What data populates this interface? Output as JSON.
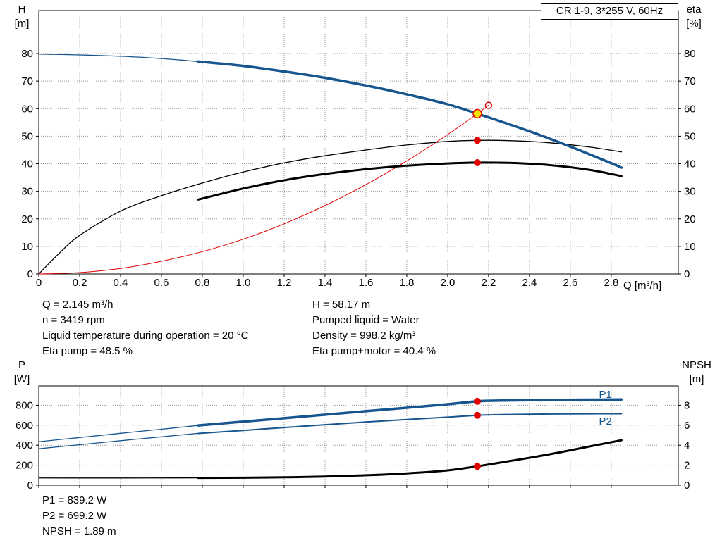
{
  "colors": {
    "blue": "#17558f",
    "red": "#e00000",
    "black": "#000000",
    "yellow": "#ffe600",
    "grid": "#999999"
  },
  "axis_titles": {
    "top_left": [
      "H",
      "[m]"
    ],
    "top_right": [
      "eta",
      "[%]"
    ],
    "bottom_left": [
      "P",
      "[W]"
    ],
    "bottom_right": [
      "NPSH",
      "[m]"
    ]
  },
  "info": {
    "left": [
      "Q = 2.145 m³/h",
      "n = 3419 rpm",
      "Liquid temperature during operation = 20 °C",
      "Eta pump = 48.5 %"
    ],
    "right": [
      "H = 58.17 m",
      "Pumped liquid = Water",
      "Density = 998.2 kg/m³",
      "Eta pump+motor = 40.4 %"
    ]
  },
  "info_bottom": [
    "P1 = 839.2 W",
    "P2 = 699.2 W",
    "NPSH = 1.89 m"
  ],
  "chart_data": [
    {
      "type": "line",
      "title": "CR 1-9, 3*255 V, 60Hz",
      "xlabel": "Q [m³/h]",
      "ylabel_left": "H [m]",
      "ylabel_right": "eta [%]",
      "xlim": [
        0,
        3.128
      ],
      "ylim_left": [
        0,
        95.6
      ],
      "ylim_right": [
        0,
        95.6
      ],
      "grid": true,
      "x_ticks": [
        [
          0,
          "0"
        ],
        [
          0.2,
          "0.2"
        ],
        [
          0.4,
          "0.4"
        ],
        [
          0.6,
          "0.6"
        ],
        [
          0.8,
          "0.8"
        ],
        [
          1.0,
          "1.0"
        ],
        [
          1.2,
          "1.2"
        ],
        [
          1.4,
          "1.4"
        ],
        [
          1.6,
          "1.6"
        ],
        [
          1.8,
          "1.8"
        ],
        [
          2.0,
          "2.0"
        ],
        [
          2.2,
          "2.2"
        ],
        [
          2.4,
          "2.4"
        ],
        [
          2.6,
          "2.6"
        ],
        [
          2.8,
          "2.8"
        ]
      ],
      "y_ticks_left": [
        [
          0,
          "0"
        ],
        [
          10,
          "10"
        ],
        [
          20,
          "20"
        ],
        [
          30,
          "30"
        ],
        [
          40,
          "40"
        ],
        [
          50,
          "50"
        ],
        [
          60,
          "60"
        ],
        [
          70,
          "70"
        ],
        [
          80,
          "80"
        ]
      ],
      "y_ticks_right": [
        [
          0,
          "0"
        ],
        [
          10,
          "10"
        ],
        [
          20,
          "20"
        ],
        [
          30,
          "30"
        ],
        [
          40,
          "40"
        ],
        [
          50,
          "50"
        ],
        [
          60,
          "60"
        ],
        [
          70,
          "70"
        ],
        [
          80,
          "80"
        ]
      ],
      "series": [
        {
          "name": "system-curve",
          "color": "red",
          "width": 1,
          "axis": "left",
          "points": [
            [
              0,
              0
            ],
            [
              0.2,
              0.5
            ],
            [
              0.4,
              2.0
            ],
            [
              0.6,
              4.6
            ],
            [
              0.8,
              8.1
            ],
            [
              1.0,
              12.6
            ],
            [
              1.2,
              18.2
            ],
            [
              1.4,
              24.8
            ],
            [
              1.6,
              32.4
            ],
            [
              1.8,
              41.0
            ],
            [
              2.0,
              50.6
            ],
            [
              2.145,
              58.17
            ],
            [
              2.2,
              61.2
            ]
          ]
        },
        {
          "name": "eta-pump-curve",
          "color": "black",
          "width": 1.3,
          "axis": "right",
          "points": [
            [
              0,
              0
            ],
            [
              0.1,
              7.5
            ],
            [
              0.2,
              14
            ],
            [
              0.4,
              22.8
            ],
            [
              0.6,
              28.4
            ],
            [
              0.8,
              33
            ],
            [
              1.0,
              37
            ],
            [
              1.2,
              40.3
            ],
            [
              1.4,
              42.9
            ],
            [
              1.6,
              45
            ],
            [
              1.8,
              46.8
            ],
            [
              2.0,
              48.1
            ],
            [
              2.145,
              48.5
            ],
            [
              2.3,
              48.4
            ],
            [
              2.5,
              47.6
            ],
            [
              2.7,
              46
            ],
            [
              2.85,
              44.3
            ]
          ]
        },
        {
          "name": "eta-pump-motor-curve",
          "color": "black",
          "width": 3,
          "axis": "right",
          "points": [
            [
              0.78,
              27
            ],
            [
              1.0,
              31
            ],
            [
              1.2,
              34
            ],
            [
              1.4,
              36.3
            ],
            [
              1.6,
              38
            ],
            [
              1.8,
              39.3
            ],
            [
              2.0,
              40.1
            ],
            [
              2.145,
              40.4
            ],
            [
              2.3,
              40.3
            ],
            [
              2.5,
              39.5
            ],
            [
              2.7,
              37.7
            ],
            [
              2.85,
              35.5
            ]
          ]
        },
        {
          "name": "h-curve-thin",
          "color": "blue",
          "width": 1.3,
          "axis": "left",
          "points": [
            [
              0,
              79.8
            ],
            [
              0.2,
              79.5
            ],
            [
              0.4,
              79.0
            ],
            [
              0.6,
              78.2
            ],
            [
              0.78,
              77.1
            ]
          ]
        },
        {
          "name": "h-curve",
          "color": "blue",
          "width": 3.5,
          "axis": "left",
          "points": [
            [
              0.78,
              77.1
            ],
            [
              1.0,
              75.5
            ],
            [
              1.2,
              73.5
            ],
            [
              1.4,
              71.2
            ],
            [
              1.6,
              68.4
            ],
            [
              1.8,
              65.2
            ],
            [
              2.0,
              61.6
            ],
            [
              2.145,
              58.17
            ],
            [
              2.4,
              51.8
            ],
            [
              2.6,
              46.2
            ],
            [
              2.8,
              40.2
            ],
            [
              2.85,
              38.6
            ]
          ]
        }
      ],
      "markers": [
        {
          "name": "system-curve-end-point",
          "x": 2.2,
          "y": 61.2,
          "axis": "left",
          "fill": "none",
          "stroke": "red",
          "r": 4.5
        },
        {
          "name": "duty-point",
          "x": 2.145,
          "y": 58.17,
          "axis": "left",
          "fill": "yellow",
          "stroke": "red",
          "r": 6
        },
        {
          "name": "eta-pump-point",
          "x": 2.145,
          "y": 48.5,
          "axis": "right",
          "fill": "red",
          "r": 5
        },
        {
          "name": "eta-pump-motor-point",
          "x": 2.145,
          "y": 40.4,
          "axis": "right",
          "fill": "red",
          "r": 5
        }
      ],
      "labels": []
    },
    {
      "type": "line",
      "title": "",
      "xlabel": "",
      "ylabel_left": "P [W]",
      "ylabel_right": "NPSH [m]",
      "xlim": [
        0,
        3.128
      ],
      "ylim_left": [
        0,
        993
      ],
      "ylim_right": [
        0,
        9.93
      ],
      "grid": true,
      "x_ticks": [
        [
          0,
          ""
        ],
        [
          0.2,
          ""
        ],
        [
          0.4,
          ""
        ],
        [
          0.6,
          ""
        ],
        [
          0.8,
          ""
        ],
        [
          1.0,
          ""
        ],
        [
          1.2,
          ""
        ],
        [
          1.4,
          ""
        ],
        [
          1.6,
          ""
        ],
        [
          1.8,
          ""
        ],
        [
          2.0,
          ""
        ],
        [
          2.2,
          ""
        ],
        [
          2.4,
          ""
        ],
        [
          2.6,
          ""
        ],
        [
          2.8,
          ""
        ]
      ],
      "y_ticks_left": [
        [
          0,
          "0"
        ],
        [
          200,
          "200"
        ],
        [
          400,
          "400"
        ],
        [
          600,
          "600"
        ],
        [
          800,
          "800"
        ]
      ],
      "y_ticks_right": [
        [
          0,
          "0"
        ],
        [
          2,
          "2"
        ],
        [
          4,
          "4"
        ],
        [
          6,
          "6"
        ],
        [
          8,
          "8"
        ]
      ],
      "series": [
        {
          "name": "p1-curve-thin",
          "color": "blue",
          "width": 1.3,
          "axis": "left",
          "points": [
            [
              0,
              435
            ],
            [
              0.2,
              477
            ],
            [
              0.4,
              519
            ],
            [
              0.6,
              560
            ],
            [
              0.78,
              598
            ]
          ]
        },
        {
          "name": "p2-curve-thin",
          "color": "blue",
          "width": 1.3,
          "axis": "left",
          "points": [
            [
              0,
              365
            ],
            [
              0.2,
              405
            ],
            [
              0.4,
              445
            ],
            [
              0.6,
              484
            ],
            [
              0.78,
              518
            ]
          ]
        },
        {
          "name": "p1-curve",
          "color": "blue",
          "width": 3.5,
          "axis": "left",
          "points": [
            [
              0.78,
              598
            ],
            [
              1.0,
              635
            ],
            [
              1.2,
              670
            ],
            [
              1.4,
              705
            ],
            [
              1.6,
              740
            ],
            [
              1.8,
              775
            ],
            [
              2.0,
              810
            ],
            [
              2.145,
              839.2
            ],
            [
              2.3,
              848
            ],
            [
              2.5,
              853
            ],
            [
              2.7,
              856
            ],
            [
              2.85,
              857
            ]
          ]
        },
        {
          "name": "p2-curve",
          "color": "blue",
          "width": 2,
          "axis": "left",
          "points": [
            [
              0.78,
              518
            ],
            [
              1.0,
              548
            ],
            [
              1.2,
              577
            ],
            [
              1.4,
              605
            ],
            [
              1.6,
              632
            ],
            [
              1.8,
              657
            ],
            [
              2.0,
              680
            ],
            [
              2.145,
              699.2
            ],
            [
              2.3,
              707
            ],
            [
              2.5,
              712
            ],
            [
              2.7,
              714
            ],
            [
              2.85,
              715
            ]
          ]
        },
        {
          "name": "npsh-curve-thin",
          "color": "black",
          "width": 1.3,
          "axis": "right",
          "points": [
            [
              0,
              0.72
            ],
            [
              0.4,
              0.72
            ],
            [
              0.78,
              0.73
            ]
          ]
        },
        {
          "name": "npsh-curve",
          "color": "black",
          "width": 3,
          "axis": "right",
          "points": [
            [
              0.78,
              0.73
            ],
            [
              1.0,
              0.75
            ],
            [
              1.2,
              0.79
            ],
            [
              1.4,
              0.86
            ],
            [
              1.6,
              0.99
            ],
            [
              1.8,
              1.18
            ],
            [
              2.0,
              1.48
            ],
            [
              2.145,
              1.89
            ],
            [
              2.3,
              2.4
            ],
            [
              2.5,
              3.1
            ],
            [
              2.7,
              3.9
            ],
            [
              2.85,
              4.5
            ]
          ]
        }
      ],
      "markers": [
        {
          "name": "p1-point",
          "x": 2.145,
          "y": 839.2,
          "axis": "left",
          "fill": "red",
          "r": 5
        },
        {
          "name": "p2-point",
          "x": 2.145,
          "y": 699.2,
          "axis": "left",
          "fill": "red",
          "r": 5
        },
        {
          "name": "npsh-point",
          "x": 2.145,
          "y": 1.89,
          "axis": "right",
          "fill": "red",
          "r": 5
        }
      ],
      "labels": [
        {
          "name": "p1-curve-label",
          "x": 2.74,
          "y": 875,
          "axis": "left",
          "text": "P1",
          "color": "blue"
        },
        {
          "name": "p2-curve-label",
          "x": 2.74,
          "y": 605,
          "axis": "left",
          "text": "P2",
          "color": "blue"
        }
      ]
    }
  ]
}
